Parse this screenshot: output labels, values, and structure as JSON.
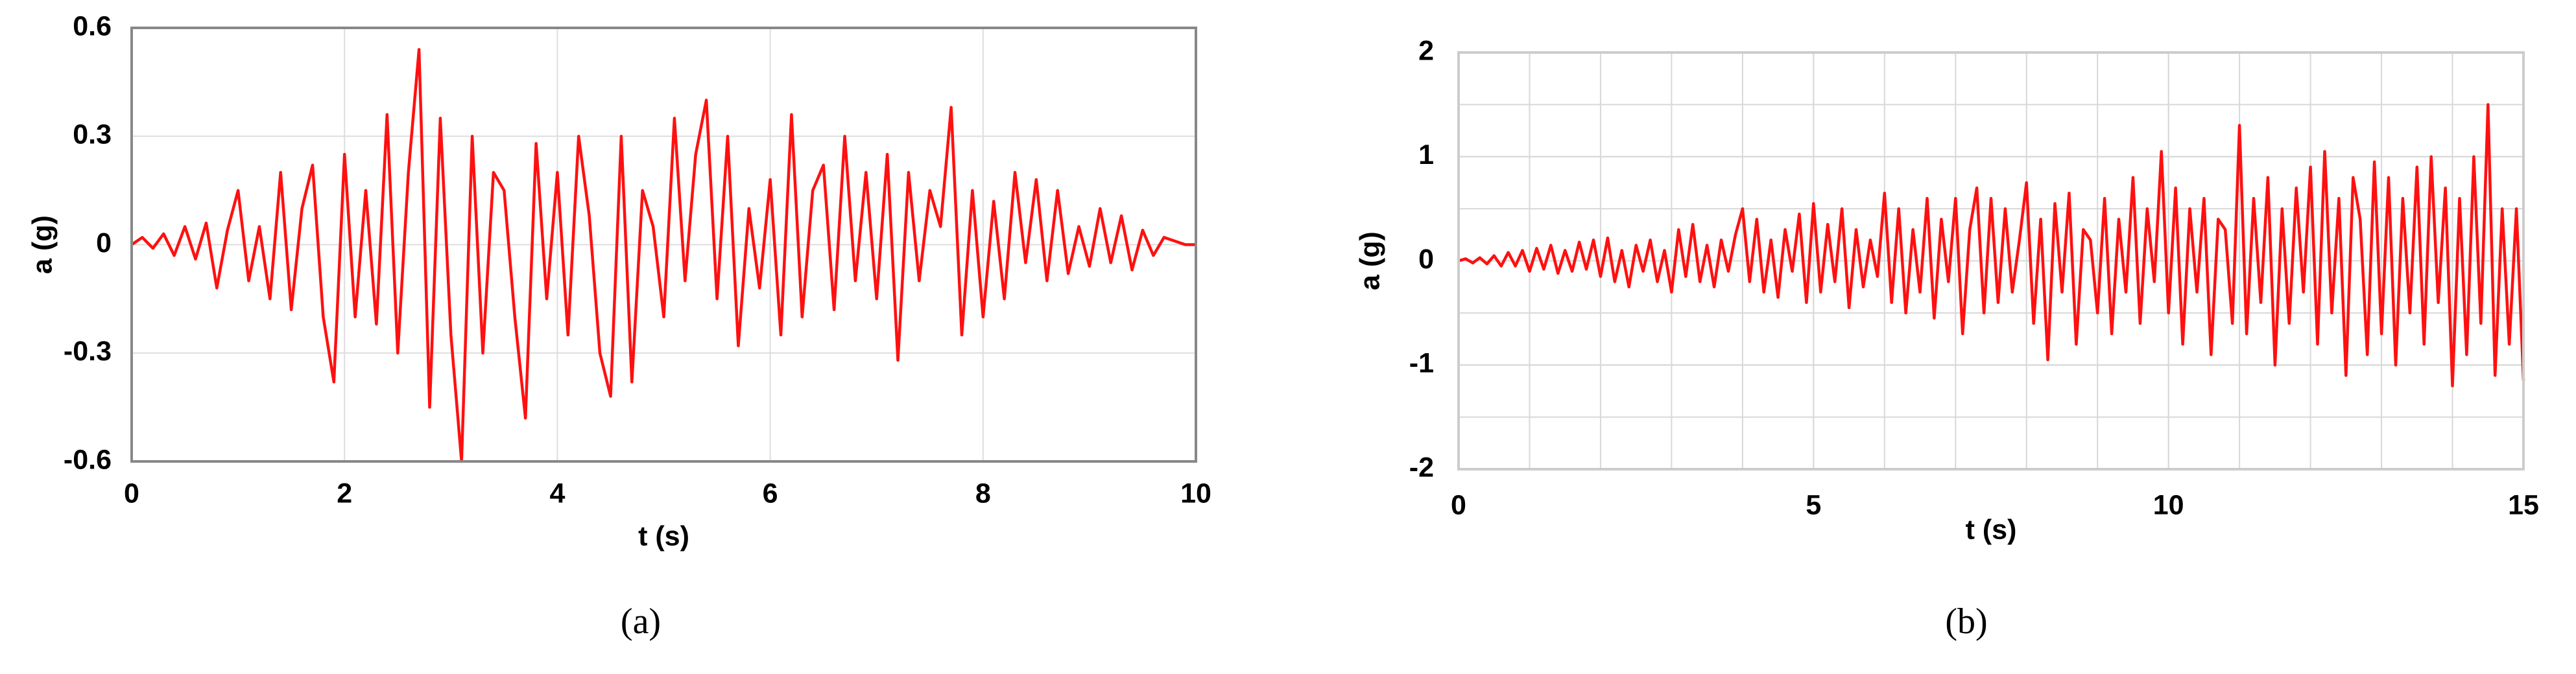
{
  "chart_data": [
    {
      "type": "line",
      "xlabel": "t (s)",
      "ylabel": "a (g)",
      "caption": "(a)",
      "xlim": [
        0,
        10
      ],
      "ylim": [
        -0.6,
        0.6
      ],
      "xticks": [
        0,
        2,
        4,
        6,
        8,
        10
      ],
      "yticks": [
        -0.6,
        -0.3,
        0,
        0.3,
        0.6
      ],
      "grid": true,
      "grid_color": "#dddddd",
      "frame_color": "#888888",
      "x": [
        0,
        0.1,
        0.2,
        0.3,
        0.4,
        0.5,
        0.6,
        0.7,
        0.8,
        0.9,
        1,
        1.1,
        1.2,
        1.3,
        1.4,
        1.5,
        1.6,
        1.7,
        1.8,
        1.9,
        2,
        2.1,
        2.2,
        2.3,
        2.4,
        2.5,
        2.6,
        2.7,
        2.8,
        2.9,
        3,
        3.1,
        3.2,
        3.3,
        3.4,
        3.5,
        3.6,
        3.7,
        3.8,
        3.9,
        4,
        4.1,
        4.2,
        4.3,
        4.4,
        4.5,
        4.6,
        4.7,
        4.8,
        4.9,
        5,
        5.1,
        5.2,
        5.3,
        5.4,
        5.5,
        5.6,
        5.7,
        5.8,
        5.9,
        6,
        6.1,
        6.2,
        6.3,
        6.4,
        6.5,
        6.6,
        6.7,
        6.8,
        6.9,
        7,
        7.1,
        7.2,
        7.3,
        7.4,
        7.5,
        7.6,
        7.7,
        7.8,
        7.9,
        8,
        8.1,
        8.2,
        8.3,
        8.4,
        8.5,
        8.6,
        8.7,
        8.8,
        8.9,
        9,
        9.1,
        9.2,
        9.3,
        9.4,
        9.5,
        9.6,
        9.7,
        9.8,
        9.9,
        10
      ],
      "series": [
        {
          "color": "#ff1010",
          "values": [
            0,
            0.02,
            -0.01,
            0.03,
            -0.03,
            0.05,
            -0.04,
            0.06,
            -0.12,
            0.04,
            0.15,
            -0.1,
            0.05,
            -0.15,
            0.2,
            -0.18,
            0.1,
            0.22,
            -0.2,
            -0.38,
            0.25,
            -0.2,
            0.15,
            -0.22,
            0.36,
            -0.3,
            0.2,
            0.54,
            -0.45,
            0.35,
            -0.25,
            -0.6,
            0.3,
            -0.3,
            0.2,
            0.15,
            -0.2,
            -0.48,
            0.28,
            -0.15,
            0.2,
            -0.25,
            0.3,
            0.08,
            -0.3,
            -0.42,
            0.3,
            -0.38,
            0.15,
            0.05,
            -0.2,
            0.35,
            -0.1,
            0.25,
            0.4,
            -0.15,
            0.3,
            -0.28,
            0.1,
            -0.12,
            0.18,
            -0.25,
            0.36,
            -0.2,
            0.15,
            0.22,
            -0.18,
            0.3,
            -0.1,
            0.2,
            -0.15,
            0.25,
            -0.32,
            0.2,
            -0.1,
            0.15,
            0.05,
            0.38,
            -0.25,
            0.15,
            -0.2,
            0.12,
            -0.15,
            0.2,
            -0.05,
            0.18,
            -0.1,
            0.15,
            -0.08,
            0.05,
            -0.06,
            0.1,
            -0.05,
            0.08,
            -0.07,
            0.04,
            -0.03,
            0.02,
            0.01,
            0,
            0
          ]
        }
      ]
    },
    {
      "type": "line",
      "xlabel": "t (s)",
      "ylabel": "a (g)",
      "caption": "(b)",
      "xlim": [
        0,
        15
      ],
      "ylim": [
        -2,
        2
      ],
      "xticks": [
        0,
        5,
        10,
        15
      ],
      "yticks": [
        -2,
        -1,
        0,
        1,
        2
      ],
      "grid": true,
      "xminor": 1,
      "yminor": 0.5,
      "grid_color": "#d8d8d8",
      "frame_color": "#cccccc",
      "x": [
        0,
        0.1,
        0.2,
        0.3,
        0.4,
        0.5,
        0.6,
        0.7,
        0.8,
        0.9,
        1,
        1.1,
        1.2,
        1.3,
        1.4,
        1.5,
        1.6,
        1.7,
        1.8,
        1.9,
        2,
        2.1,
        2.2,
        2.3,
        2.4,
        2.5,
        2.6,
        2.7,
        2.8,
        2.9,
        3,
        3.1,
        3.2,
        3.3,
        3.4,
        3.5,
        3.6,
        3.7,
        3.8,
        3.9,
        4,
        4.1,
        4.2,
        4.3,
        4.4,
        4.5,
        4.6,
        4.7,
        4.8,
        4.9,
        5,
        5.1,
        5.2,
        5.3,
        5.4,
        5.5,
        5.6,
        5.7,
        5.8,
        5.9,
        6,
        6.1,
        6.2,
        6.3,
        6.4,
        6.5,
        6.6,
        6.7,
        6.8,
        6.9,
        7,
        7.1,
        7.2,
        7.3,
        7.4,
        7.5,
        7.6,
        7.7,
        7.8,
        7.9,
        8,
        8.1,
        8.2,
        8.3,
        8.4,
        8.5,
        8.6,
        8.7,
        8.8,
        8.9,
        9,
        9.1,
        9.2,
        9.3,
        9.4,
        9.5,
        9.6,
        9.7,
        9.8,
        9.9,
        10,
        10.1,
        10.2,
        10.3,
        10.4,
        10.5,
        10.6,
        10.7,
        10.8,
        10.9,
        11,
        11.1,
        11.2,
        11.3,
        11.4,
        11.5,
        11.6,
        11.7,
        11.8,
        11.9,
        12,
        12.1,
        12.2,
        12.3,
        12.4,
        12.5,
        12.6,
        12.7,
        12.8,
        12.9,
        13,
        13.1,
        13.2,
        13.3,
        13.4,
        13.5,
        13.6,
        13.7,
        13.8,
        13.9,
        14,
        14.1,
        14.2,
        14.3,
        14.4,
        14.5,
        14.6,
        14.7,
        14.8,
        14.9,
        15
      ],
      "series": [
        {
          "color": "#ff1010",
          "values": [
            0,
            0.02,
            -0.02,
            0.03,
            -0.03,
            0.05,
            -0.05,
            0.08,
            -0.05,
            0.1,
            -0.1,
            0.12,
            -0.08,
            0.15,
            -0.12,
            0.1,
            -0.1,
            0.18,
            -0.08,
            0.2,
            -0.15,
            0.22,
            -0.2,
            0.1,
            -0.25,
            0.15,
            -0.1,
            0.2,
            -0.2,
            0.1,
            -0.3,
            0.3,
            -0.15,
            0.35,
            -0.2,
            0.15,
            -0.25,
            0.2,
            -0.1,
            0.25,
            0.5,
            -0.2,
            0.4,
            -0.3,
            0.2,
            -0.35,
            0.3,
            -0.1,
            0.45,
            -0.4,
            0.55,
            -0.3,
            0.35,
            -0.2,
            0.5,
            -0.45,
            0.3,
            -0.25,
            0.2,
            -0.15,
            0.65,
            -0.4,
            0.5,
            -0.5,
            0.3,
            -0.3,
            0.6,
            -0.55,
            0.4,
            -0.2,
            0.6,
            -0.7,
            0.3,
            0.7,
            -0.5,
            0.6,
            -0.4,
            0.5,
            -0.3,
            0.2,
            0.75,
            -0.6,
            0.4,
            -0.95,
            0.55,
            -0.3,
            0.65,
            -0.8,
            0.3,
            0.2,
            -0.5,
            0.6,
            -0.7,
            0.4,
            -0.3,
            0.8,
            -0.6,
            0.5,
            -0.2,
            1.05,
            -0.5,
            0.7,
            -0.8,
            0.5,
            -0.3,
            0.6,
            -0.9,
            0.4,
            0.3,
            -0.6,
            1.3,
            -0.7,
            0.6,
            -0.4,
            0.8,
            -1.0,
            0.5,
            -0.6,
            0.7,
            -0.3,
            0.9,
            -0.8,
            1.05,
            -0.5,
            0.6,
            -1.1,
            0.8,
            0.4,
            -0.9,
            0.95,
            -0.7,
            0.8,
            -1.0,
            0.6,
            -0.5,
            0.9,
            -0.8,
            1.0,
            -0.4,
            0.7,
            -1.2,
            0.6,
            -0.9,
            1.0,
            -0.6,
            1.5,
            -1.1,
            0.5,
            -0.8,
            0.5,
            -1.15
          ]
        }
      ]
    }
  ]
}
